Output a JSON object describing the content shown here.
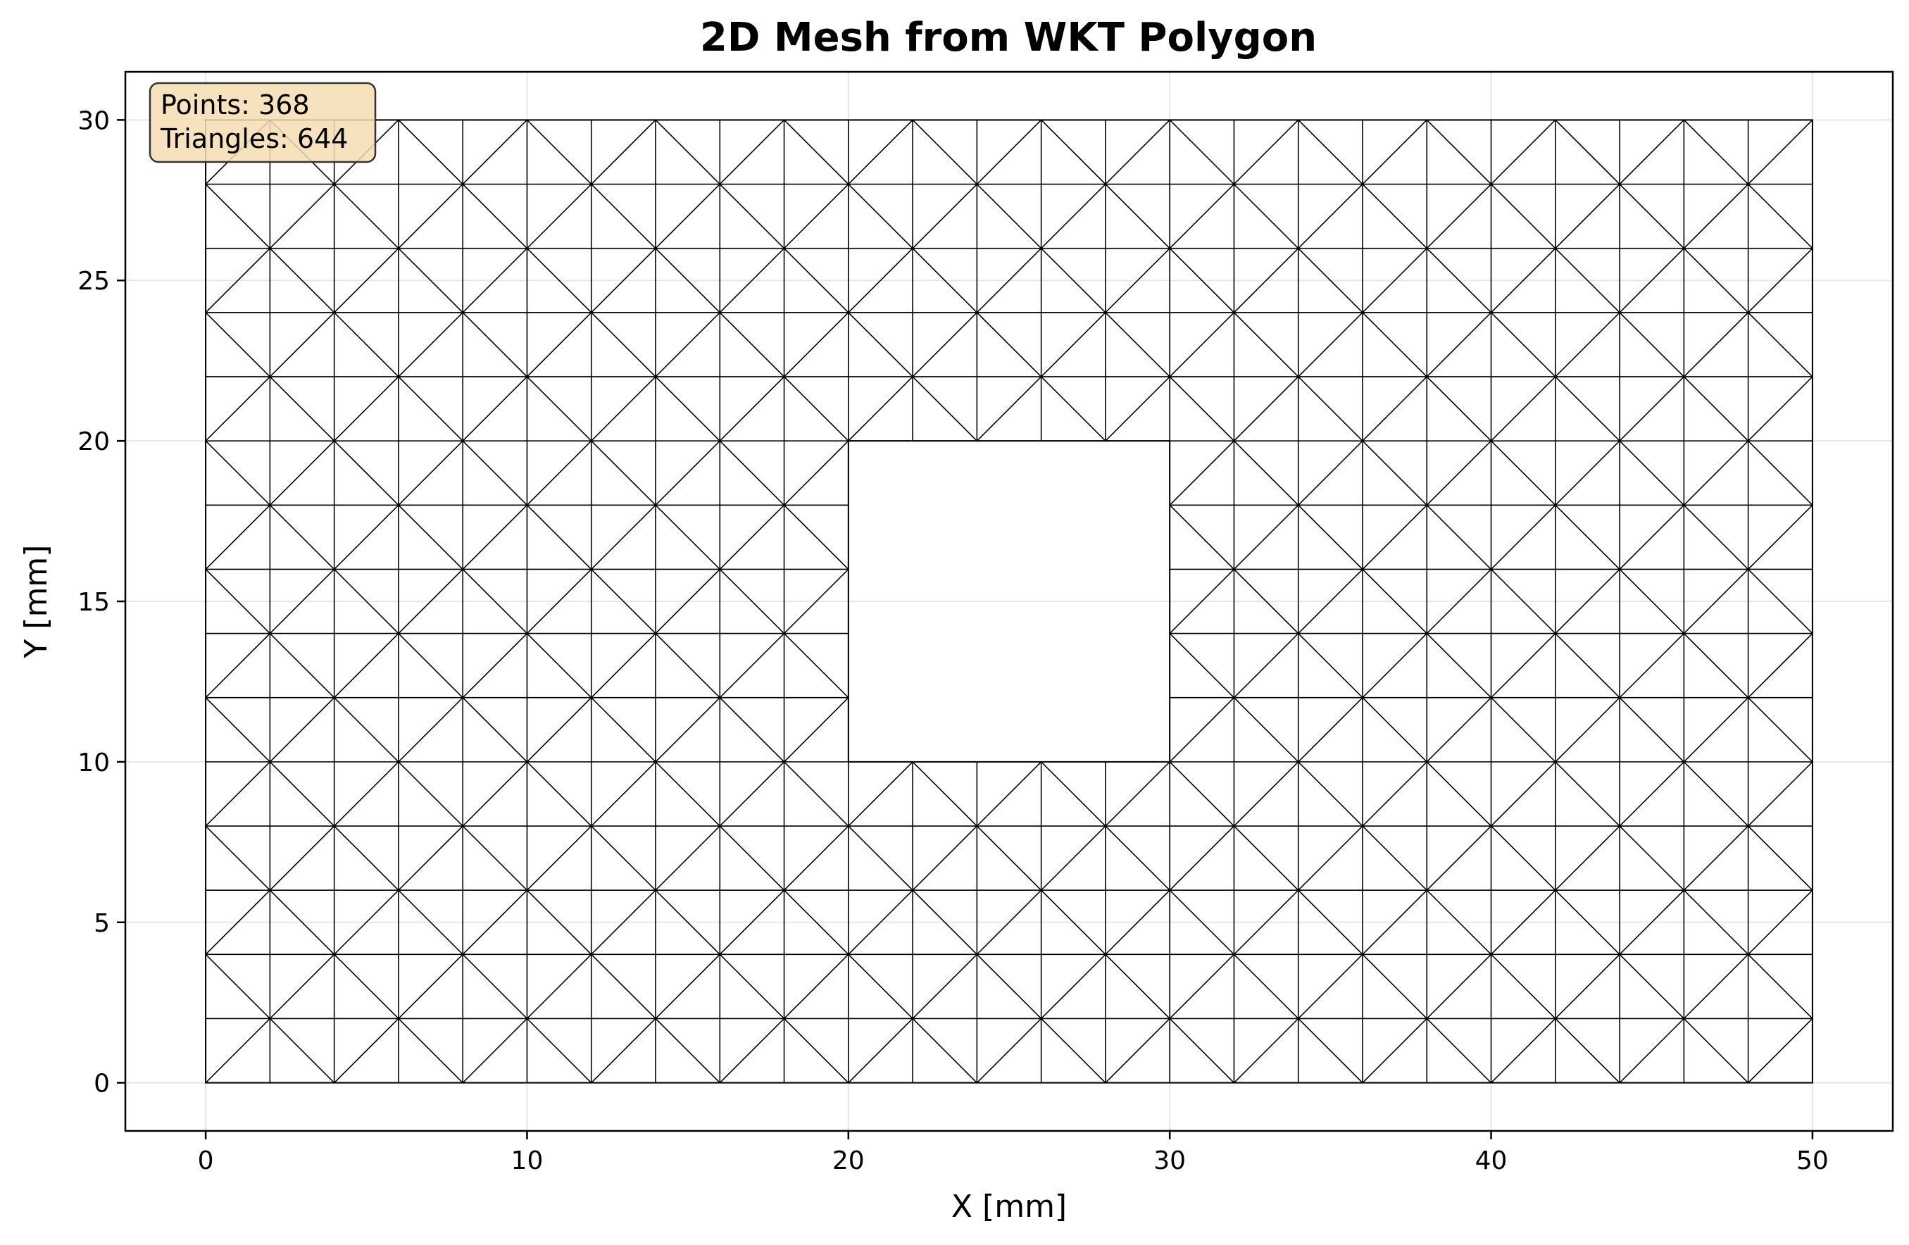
{
  "chart_data": {
    "type": "mesh",
    "title": "2D Mesh from WKT Polygon",
    "xlabel": "X [mm]",
    "ylabel": "Y [mm]",
    "xlim": [
      -2.5,
      52.5
    ],
    "ylim": [
      -1.5,
      31.5
    ],
    "xticks": [
      0,
      10,
      20,
      30,
      40,
      50
    ],
    "yticks": [
      0,
      5,
      10,
      15,
      20,
      25,
      30
    ],
    "grid": true,
    "outer_boundary": [
      [
        0,
        0
      ],
      [
        50,
        0
      ],
      [
        50,
        30
      ],
      [
        0,
        30
      ]
    ],
    "hole_boundary": [
      [
        20,
        10
      ],
      [
        30,
        10
      ],
      [
        30,
        20
      ],
      [
        20,
        20
      ]
    ],
    "stats": {
      "points": 368,
      "triangles": 644
    },
    "annotation_lines": [
      "Points: 368",
      "Triangles: 644"
    ],
    "mesh_spacing": 2.0,
    "colors": {
      "edge": "#000000",
      "grid": "#e6e6e6",
      "info_box": "#f5deb3"
    }
  }
}
